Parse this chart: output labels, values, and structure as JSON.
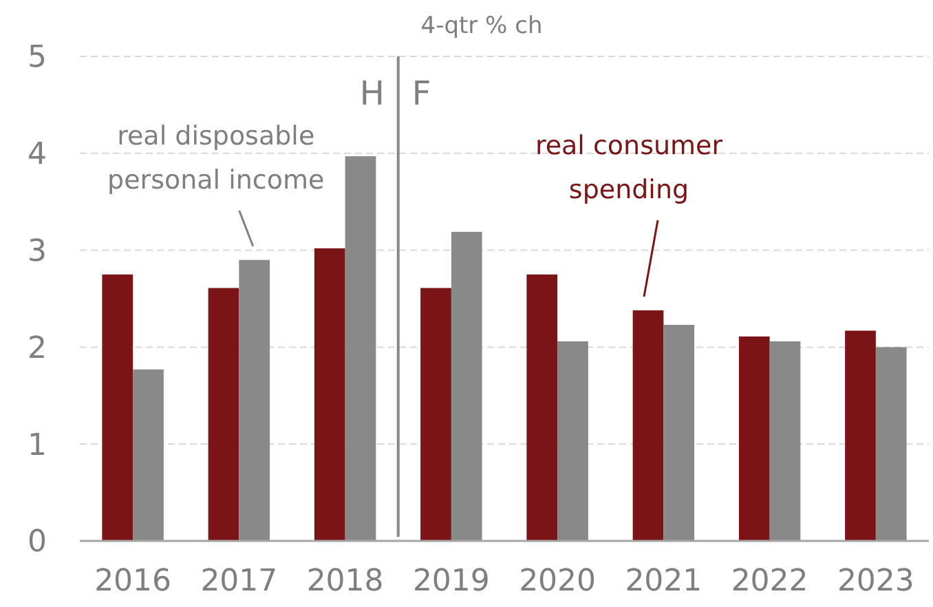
{
  "chart_data": {
    "type": "bar",
    "ylabel": "4-qtr % ch",
    "categories": [
      "2016",
      "2017",
      "2018",
      "2019",
      "2020",
      "2021",
      "2022",
      "2023"
    ],
    "series": [
      {
        "name": "real consumer spending",
        "color": "#7b1416",
        "values": [
          2.75,
          2.61,
          3.02,
          2.61,
          2.75,
          2.38,
          2.11,
          2.17
        ]
      },
      {
        "name": "real disposable personal income",
        "color": "#898989",
        "values": [
          1.77,
          2.9,
          3.97,
          3.19,
          2.06,
          2.23,
          2.06,
          2.0
        ]
      }
    ],
    "ylim": [
      0,
      5
    ],
    "yticks": [
      0,
      1,
      2,
      3,
      4,
      5
    ],
    "grid": "y",
    "ref_lines": [
      {
        "axis": "x",
        "value": "2018",
        "color": "#898989",
        "line_style": "solid"
      }
    ],
    "annotations": [
      "H",
      "F"
    ]
  }
}
